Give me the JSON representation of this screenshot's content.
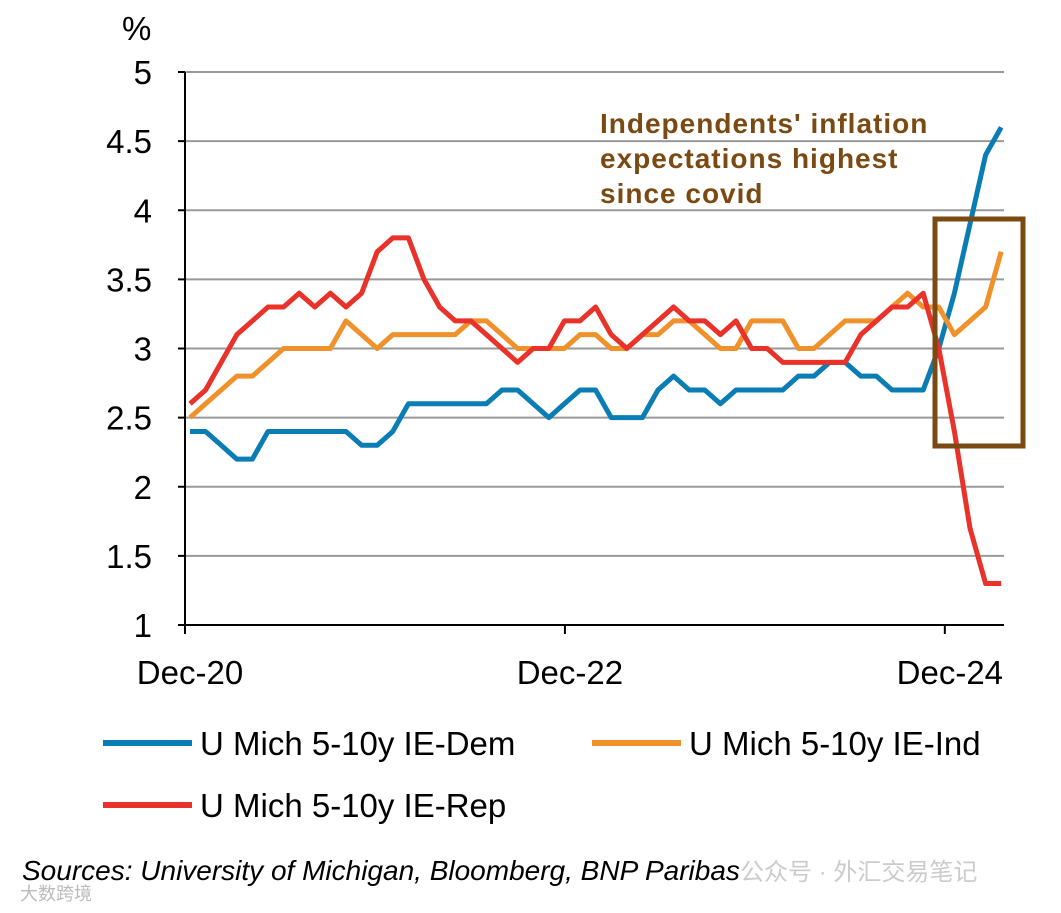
{
  "chart_data": {
    "type": "line",
    "unit_label": "%",
    "ylim": [
      1,
      5
    ],
    "yticks": [
      "1",
      "1.5",
      "2",
      "2.5",
      "3",
      "3.5",
      "4",
      "4.5",
      "5"
    ],
    "xtick_labels": [
      "Dec-20",
      "Dec-22",
      "Dec-24"
    ],
    "x_start": "Dec-20",
    "x_end": "Apr-25",
    "frequency": "monthly",
    "series": [
      {
        "name": "U Mich 5-10y IE-Dem",
        "color": "#0a7db5",
        "values": [
          2.4,
          2.4,
          2.3,
          2.2,
          2.2,
          2.4,
          2.4,
          2.4,
          2.4,
          2.4,
          2.4,
          2.3,
          2.3,
          2.4,
          2.6,
          2.6,
          2.6,
          2.6,
          2.6,
          2.6,
          2.7,
          2.7,
          2.6,
          2.5,
          2.6,
          2.7,
          2.7,
          2.5,
          2.5,
          2.5,
          2.7,
          2.8,
          2.7,
          2.7,
          2.6,
          2.7,
          2.7,
          2.7,
          2.7,
          2.8,
          2.8,
          2.9,
          2.9,
          2.8,
          2.8,
          2.7,
          2.7,
          2.7,
          3.0,
          3.4,
          3.9,
          4.4,
          4.6
        ]
      },
      {
        "name": "U Mich 5-10y IE-Ind",
        "color": "#f0922b",
        "values": [
          2.5,
          2.6,
          2.7,
          2.8,
          2.8,
          2.9,
          3.0,
          3.0,
          3.0,
          3.0,
          3.2,
          3.1,
          3.0,
          3.1,
          3.1,
          3.1,
          3.1,
          3.1,
          3.2,
          3.2,
          3.1,
          3.0,
          3.0,
          3.0,
          3.0,
          3.1,
          3.1,
          3.0,
          3.0,
          3.1,
          3.1,
          3.2,
          3.2,
          3.1,
          3.0,
          3.0,
          3.2,
          3.2,
          3.2,
          3.0,
          3.0,
          3.1,
          3.2,
          3.2,
          3.2,
          3.3,
          3.4,
          3.3,
          3.3,
          3.1,
          3.2,
          3.3,
          3.7
        ]
      },
      {
        "name": "U Mich 5-10y IE-Rep",
        "color": "#e8322a",
        "values": [
          2.6,
          2.7,
          2.9,
          3.1,
          3.2,
          3.3,
          3.3,
          3.4,
          3.3,
          3.4,
          3.3,
          3.4,
          3.7,
          3.8,
          3.8,
          3.5,
          3.3,
          3.2,
          3.2,
          3.1,
          3.0,
          2.9,
          3.0,
          3.0,
          3.2,
          3.2,
          3.3,
          3.1,
          3.0,
          3.1,
          3.2,
          3.3,
          3.2,
          3.2,
          3.1,
          3.2,
          3.0,
          3.0,
          2.9,
          2.9,
          2.9,
          2.9,
          2.9,
          3.1,
          3.2,
          3.3,
          3.3,
          3.4,
          3.0,
          2.4,
          1.7,
          1.3,
          1.3
        ]
      }
    ],
    "annotation": [
      "Independents' inflation",
      "expectations highest",
      "since covid"
    ],
    "annotation_color": "#7b4a12",
    "grid": true,
    "legend_placement": "bottom"
  },
  "source": "Sources: University of Michigan, Bloomberg,  BNP Paribas",
  "watermarks": [
    "大数跨境",
    "公众号 · 外汇交易笔记"
  ]
}
